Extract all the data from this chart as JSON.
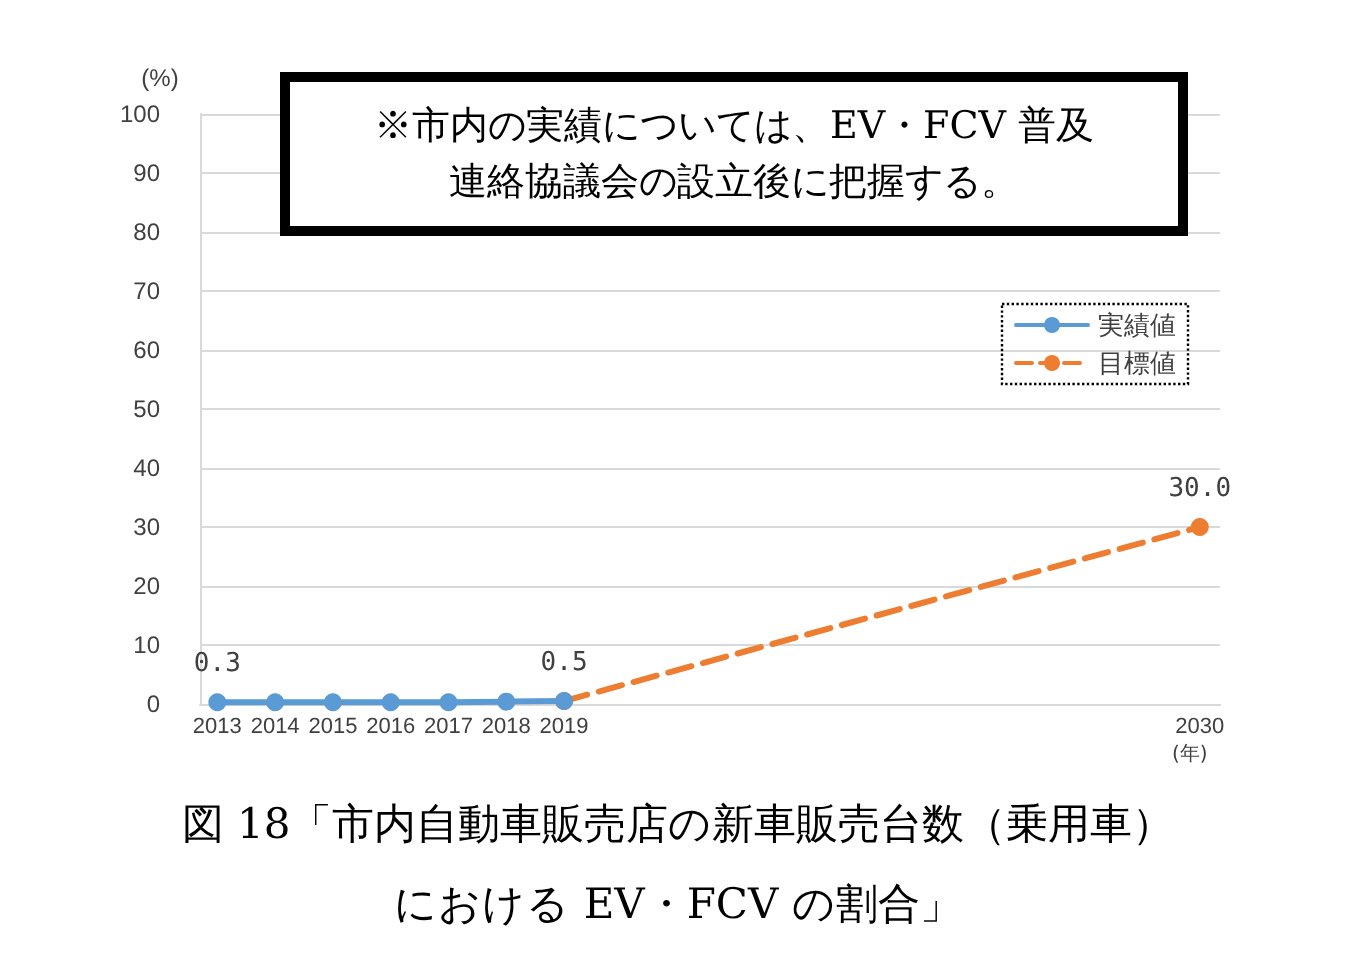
{
  "chart_data": {
    "type": "line",
    "title": "図 18「市内自動車販売店の新車販売台数（乗用車）における EV・FCV の割合」",
    "annotations": [
      "※市内の実績については、EV・FCV 普及連絡協議会の設立後に把握する。"
    ],
    "xlabel": "(年)",
    "ylabel": "(%)",
    "xlim": [
      2012.7,
      2030.35
    ],
    "xticks": [
      2013,
      2014,
      2015,
      2016,
      2017,
      2018,
      2019,
      2030
    ],
    "ylim": [
      0,
      100
    ],
    "yticks": [
      0,
      10,
      20,
      30,
      40,
      50,
      60,
      70,
      80,
      90,
      100
    ],
    "series": [
      {
        "name": "実績値",
        "color": "#5b9bd5",
        "x": [
          2013,
          2014,
          2015,
          2016,
          2017,
          2018,
          2019
        ],
        "values": [
          0.3,
          0.3,
          0.3,
          0.3,
          0.3,
          0.4,
          0.5
        ],
        "value_labels": [
          "0.3",
          null,
          null,
          null,
          null,
          null,
          "0.5"
        ],
        "line_style": "solid",
        "marker": "circle"
      },
      {
        "name": "目標値",
        "color": "#ed7d31",
        "x": [
          2019,
          2030
        ],
        "values": [
          0.5,
          30.0
        ],
        "value_labels": [
          null,
          "30.0"
        ],
        "line_style": "dashed",
        "marker": "circle"
      }
    ],
    "grid": "y",
    "legend": "top right"
  }
}
